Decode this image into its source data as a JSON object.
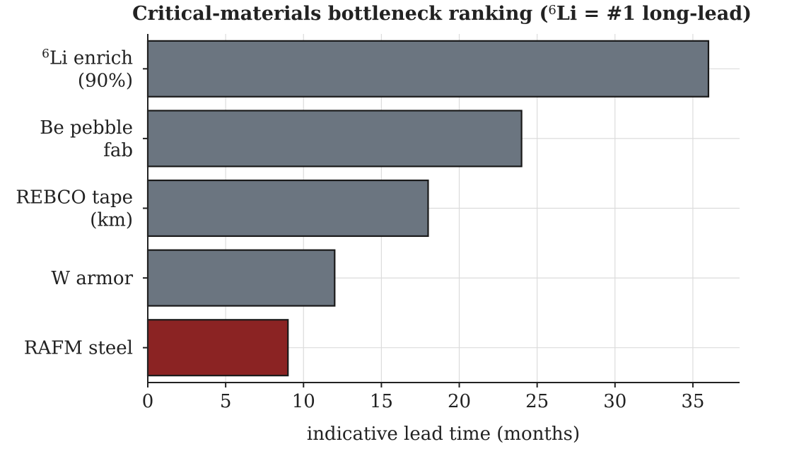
{
  "chart_data": {
    "type": "bar",
    "orientation": "horizontal",
    "title_parts": [
      "Critical-materials bottleneck ranking (",
      "6",
      "Li = #1 long-lead)"
    ],
    "xlabel": "indicative lead time (months)",
    "ylabel": "",
    "xlim": [
      0,
      38
    ],
    "xticks": [
      0,
      5,
      10,
      15,
      20,
      25,
      30,
      35
    ],
    "grid": true,
    "categories": [
      {
        "lines": [
          [
            "",
            "6",
            "Li enrich"
          ],
          [
            "(90%)"
          ]
        ]
      },
      {
        "lines": [
          [
            "Be pebble"
          ],
          [
            "fab"
          ]
        ]
      },
      {
        "lines": [
          [
            "REBCO tape"
          ],
          [
            "(km)"
          ]
        ]
      },
      {
        "lines": [
          [
            "W armor"
          ]
        ]
      },
      {
        "lines": [
          [
            "RAFM steel"
          ]
        ]
      }
    ],
    "values": [
      36,
      24,
      18,
      12,
      9
    ],
    "colors": [
      "#6b7580",
      "#6b7580",
      "#6b7580",
      "#6b7580",
      "#8b2323"
    ]
  }
}
